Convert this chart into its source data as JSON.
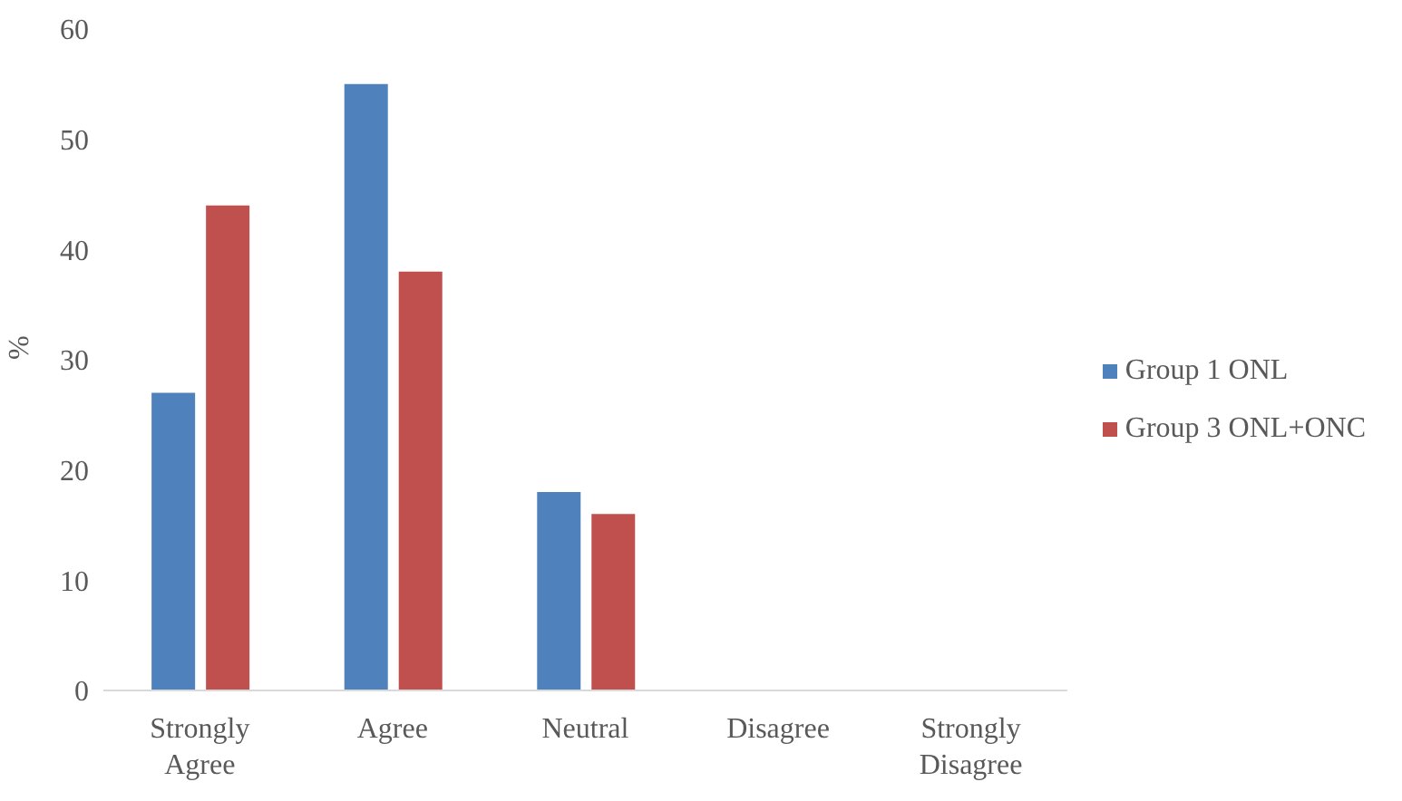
{
  "chart_data": {
    "type": "bar",
    "ylabel": "%",
    "categories": [
      "Strongly Agree",
      "Agree",
      "Neutral",
      "Disagree",
      "Strongly Disagree"
    ],
    "series": [
      {
        "name": "Group 1 ONL",
        "color": "#4f81bd",
        "values": [
          27,
          55,
          18,
          0,
          0
        ]
      },
      {
        "name": "Group 3 ONL+ONC",
        "color": "#c0504d",
        "values": [
          44,
          38,
          16,
          0,
          0
        ]
      }
    ],
    "ylim": [
      0,
      60
    ],
    "yticks": [
      0,
      10,
      20,
      30,
      40,
      50,
      60
    ],
    "grid": false,
    "legend": "right"
  }
}
